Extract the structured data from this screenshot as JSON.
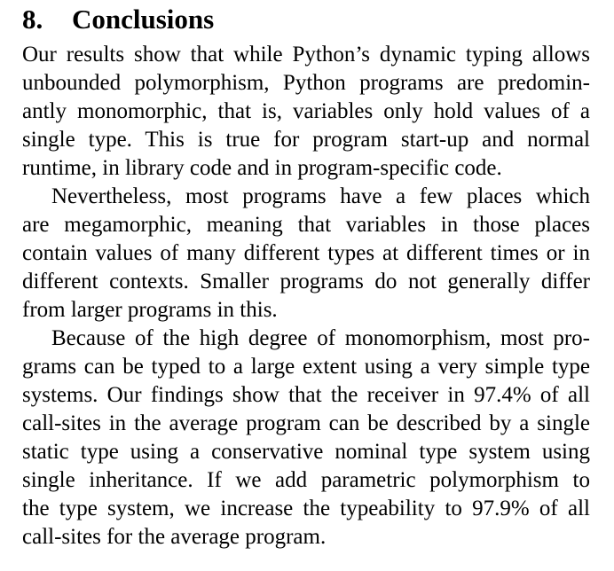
{
  "section": {
    "number": "8.",
    "title": "Conclusions"
  },
  "paragraphs": [
    {
      "lines": [
        "Our results show that while Python’s dynamic typing allows",
        "unbounded polymorphism, Python programs are predomin-",
        "antly monomorphic, that is, variables only hold values of a",
        "single type. This is true for program start-up and normal",
        "runtime, in library code and in program-specific code."
      ]
    },
    {
      "lines": [
        "Nevertheless, most programs have a few places which",
        "are megamorphic, meaning that variables in those places",
        "contain values of many different types at different times or in",
        "different contexts. Smaller programs do not generally differ",
        "from larger programs in this."
      ]
    },
    {
      "lines": [
        "Because of the high degree of monomorphism, most pro-",
        "grams can be typed to a large extent using a very simple type",
        "systems. Our findings show that the receiver in 97.4% of all",
        "call-sites in the average program can be described by a single",
        "static type using a conservative nominal type system using",
        "single inheritance. If we add parametric polymorphism to",
        "the type system, we increase the typeability to 97.9% of all",
        "call-sites for the average program."
      ]
    }
  ]
}
